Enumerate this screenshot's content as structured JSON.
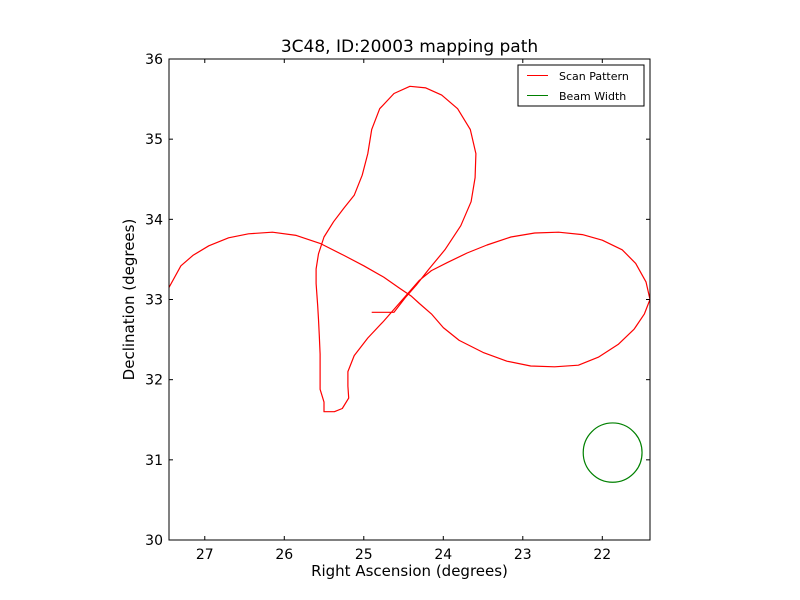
{
  "chart_data": {
    "type": "line",
    "title": "3C48, ID:20003 mapping path",
    "xlabel": "Right Ascension (degrees)",
    "ylabel": "Declination (degrees)",
    "xlim": [
      27.45,
      21.4
    ],
    "ylim": [
      30,
      36
    ],
    "x_inverted": true,
    "grid": false,
    "legend_position": "top-right",
    "x_ticks": [
      27,
      26,
      25,
      24,
      23,
      22
    ],
    "x_tick_labels": [
      "27",
      "26",
      "25",
      "24",
      "23",
      "22"
    ],
    "y_ticks": [
      30,
      31,
      32,
      33,
      34,
      35,
      36
    ],
    "y_tick_labels": [
      "30",
      "31",
      "32",
      "33",
      "34",
      "35",
      "36"
    ],
    "legend": [
      {
        "label": "Scan Pattern",
        "color": "#ff0000",
        "marker": "line"
      },
      {
        "label": "Beam Width",
        "color": "#008000",
        "marker": "line"
      }
    ],
    "series": [
      {
        "name": "Scan Pattern",
        "color": "#ff0000",
        "points": [
          [
            27.45,
            33.15
          ],
          [
            27.3,
            33.42
          ],
          [
            27.15,
            33.55
          ],
          [
            26.95,
            33.67
          ],
          [
            26.7,
            33.77
          ],
          [
            26.45,
            33.82
          ],
          [
            26.15,
            33.84
          ],
          [
            25.85,
            33.8
          ],
          [
            25.55,
            33.7
          ],
          [
            25.25,
            33.55
          ],
          [
            25.0,
            33.42
          ],
          [
            24.75,
            33.28
          ],
          [
            24.55,
            33.14
          ],
          [
            24.4,
            33.04
          ],
          [
            24.3,
            32.95
          ],
          [
            24.15,
            32.82
          ],
          [
            24.0,
            32.65
          ],
          [
            23.8,
            32.49
          ],
          [
            23.5,
            32.34
          ],
          [
            23.2,
            32.23
          ],
          [
            22.9,
            32.17
          ],
          [
            22.6,
            32.16
          ],
          [
            22.3,
            32.18
          ],
          [
            22.05,
            32.28
          ],
          [
            21.8,
            32.44
          ],
          [
            21.6,
            32.63
          ],
          [
            21.47,
            32.82
          ],
          [
            21.4,
            33.0
          ],
          [
            21.45,
            33.22
          ],
          [
            21.58,
            33.45
          ],
          [
            21.75,
            33.62
          ],
          [
            22.0,
            33.74
          ],
          [
            22.25,
            33.81
          ],
          [
            22.55,
            33.84
          ],
          [
            22.85,
            33.83
          ],
          [
            23.15,
            33.78
          ],
          [
            23.45,
            33.68
          ],
          [
            23.7,
            33.58
          ],
          [
            23.95,
            33.46
          ],
          [
            24.15,
            33.36
          ],
          [
            24.3,
            33.24
          ],
          [
            24.45,
            33.07
          ],
          [
            24.6,
            32.9
          ],
          [
            24.75,
            32.73
          ],
          [
            24.95,
            32.52
          ],
          [
            25.12,
            32.3
          ],
          [
            25.2,
            32.1
          ],
          [
            25.2,
            31.92
          ],
          [
            25.19,
            31.77
          ],
          [
            25.27,
            31.64
          ],
          [
            25.37,
            31.6
          ],
          [
            25.5,
            31.6
          ],
          [
            25.5,
            31.72
          ],
          [
            25.55,
            31.88
          ],
          [
            25.55,
            32.1
          ],
          [
            25.55,
            32.32
          ],
          [
            25.56,
            32.55
          ],
          [
            25.57,
            32.75
          ],
          [
            25.58,
            32.92
          ],
          [
            25.59,
            33.06
          ],
          [
            25.6,
            33.2
          ],
          [
            25.6,
            33.38
          ],
          [
            25.57,
            33.57
          ],
          [
            25.5,
            33.78
          ],
          [
            25.38,
            33.97
          ],
          [
            25.25,
            34.14
          ],
          [
            25.12,
            34.3
          ],
          [
            25.02,
            34.55
          ],
          [
            24.95,
            34.82
          ],
          [
            24.9,
            35.12
          ],
          [
            24.8,
            35.38
          ],
          [
            24.62,
            35.57
          ],
          [
            24.42,
            35.66
          ],
          [
            24.22,
            35.64
          ],
          [
            24.02,
            35.55
          ],
          [
            23.82,
            35.38
          ],
          [
            23.66,
            35.12
          ],
          [
            23.59,
            34.82
          ],
          [
            23.6,
            34.52
          ],
          [
            23.65,
            34.22
          ],
          [
            23.78,
            33.92
          ],
          [
            23.98,
            33.62
          ],
          [
            24.18,
            33.38
          ],
          [
            24.34,
            33.18
          ],
          [
            24.48,
            33.02
          ],
          [
            24.62,
            32.84
          ],
          [
            24.9,
            32.84
          ],
          [
            24.9,
            32.84
          ]
        ]
      },
      {
        "name": "Beam Width",
        "color": "#008000",
        "circle": {
          "center": [
            21.87,
            31.09
          ],
          "radius": 0.37
        }
      }
    ]
  }
}
